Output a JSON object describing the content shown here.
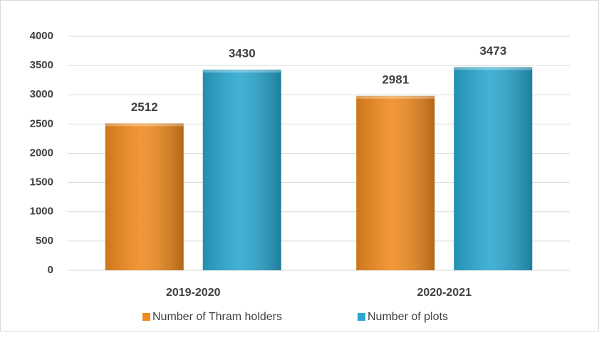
{
  "chart_data": {
    "type": "bar",
    "categories": [
      "2019-2020",
      "2020-2021"
    ],
    "series": [
      {
        "name": "Number of Thram holders",
        "color": "#f08a1f",
        "values": [
          2512,
          2981
        ]
      },
      {
        "name": "Number of plots",
        "color": "#29a7cf",
        "values": [
          3430,
          3473
        ]
      }
    ],
    "ylim": [
      0,
      4000
    ],
    "yticks": [
      0,
      500,
      1000,
      1500,
      2000,
      2500,
      3000,
      3500,
      4000
    ],
    "grid": true,
    "legend": "bottom"
  }
}
